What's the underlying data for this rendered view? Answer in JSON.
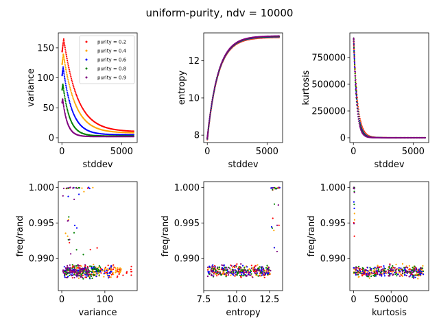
{
  "figure": {
    "title": "uniform-purity, ndv = 10000"
  },
  "legend": {
    "entries": [
      {
        "label": "purity = 0.2",
        "color": "#ff0000"
      },
      {
        "label": "purity = 0.4",
        "color": "#ffa500"
      },
      {
        "label": "purity = 0.6",
        "color": "#0000ff"
      },
      {
        "label": "purity = 0.8",
        "color": "#008000"
      },
      {
        "label": "purity = 0.9",
        "color": "#800080"
      }
    ]
  },
  "chart_data": [
    {
      "type": "scatter",
      "id": "p1",
      "xlabel": "stddev",
      "ylabel": "variance",
      "xlim": [
        -300,
        6300
      ],
      "ylim": [
        -8,
        175
      ],
      "xticks": [
        {
          "v": 0,
          "label": "0"
        },
        {
          "v": 5000,
          "label": "5000"
        }
      ],
      "yticks": [
        {
          "v": 0,
          "label": "0"
        },
        {
          "v": 50,
          "label": "50"
        },
        {
          "v": 100,
          "label": "100"
        },
        {
          "v": 150,
          "label": "150"
        }
      ],
      "legend": "top-right",
      "series": [
        {
          "name": "purity = 0.2",
          "color": "#ff0000",
          "kind": "decay",
          "peak_x": 150,
          "peak": 165,
          "floor": 10,
          "tau": 1150,
          "x_start": 20,
          "x_end": 6000,
          "n": 120
        },
        {
          "name": "purity = 0.4",
          "color": "#ffa500",
          "kind": "decay",
          "peak_x": 120,
          "peak": 140,
          "floor": 8,
          "tau": 1000,
          "x_start": 20,
          "x_end": 6000,
          "n": 120
        },
        {
          "name": "purity = 0.6",
          "color": "#0000ff",
          "kind": "decay",
          "peak_x": 100,
          "peak": 118,
          "floor": 5,
          "tau": 750,
          "x_start": 20,
          "x_end": 6000,
          "n": 120
        },
        {
          "name": "purity = 0.8",
          "color": "#008000",
          "kind": "decay",
          "peak_x": 80,
          "peak": 90,
          "floor": 3,
          "tau": 550,
          "x_start": 20,
          "x_end": 6000,
          "n": 120
        },
        {
          "name": "purity = 0.9",
          "color": "#800080",
          "kind": "decay",
          "peak_x": 60,
          "peak": 65,
          "floor": 2,
          "tau": 400,
          "x_start": 20,
          "x_end": 6000,
          "n": 120
        }
      ]
    },
    {
      "type": "scatter",
      "id": "p2",
      "xlabel": "stddev",
      "ylabel": "entropy",
      "xlim": [
        -300,
        6300
      ],
      "ylim": [
        7.6,
        13.5
      ],
      "xticks": [
        {
          "v": 0,
          "label": "0"
        },
        {
          "v": 5000,
          "label": "5000"
        }
      ],
      "yticks": [
        {
          "v": 8,
          "label": "8"
        },
        {
          "v": 10,
          "label": "10"
        },
        {
          "v": 12,
          "label": "12"
        }
      ],
      "series": [
        {
          "name": "purity = 0.2",
          "color": "#ff0000",
          "kind": "rise",
          "y0": 7.8,
          "y1": 13.3,
          "tau": 900,
          "x_start": 0,
          "x_end": 6000,
          "n": 120
        },
        {
          "name": "purity = 0.4",
          "color": "#ffa500",
          "kind": "rise",
          "y0": 7.8,
          "y1": 13.3,
          "tau": 900,
          "x_start": 0,
          "x_end": 6000,
          "n": 120
        },
        {
          "name": "purity = 0.6",
          "color": "#0000ff",
          "kind": "rise",
          "y0": 7.8,
          "y1": 13.3,
          "tau": 900,
          "x_start": 0,
          "x_end": 6000,
          "n": 120
        },
        {
          "name": "purity = 0.8",
          "color": "#008000",
          "kind": "rise",
          "y0": 7.8,
          "y1": 13.3,
          "tau": 900,
          "x_start": 0,
          "x_end": 6000,
          "n": 120
        },
        {
          "name": "purity = 0.9",
          "color": "#800080",
          "kind": "rise",
          "y0": 7.8,
          "y1": 13.3,
          "tau": 900,
          "x_start": 0,
          "x_end": 6000,
          "n": 120
        }
      ]
    },
    {
      "type": "scatter",
      "id": "p3",
      "xlabel": "stddev",
      "ylabel": "kurtosis",
      "xlim": [
        -300,
        6300
      ],
      "ylim": [
        -45000,
        980000
      ],
      "xticks": [
        {
          "v": 0,
          "label": "0"
        },
        {
          "v": 5000,
          "label": "5000"
        }
      ],
      "yticks": [
        {
          "v": 0,
          "label": "0"
        },
        {
          "v": 250000,
          "label": "250000"
        },
        {
          "v": 500000,
          "label": "500000"
        },
        {
          "v": 750000,
          "label": "750000"
        }
      ],
      "series": [
        {
          "name": "purity = 0.2",
          "color": "#ff0000",
          "kind": "decay",
          "peak_x": 20,
          "peak": 930000,
          "floor": 0,
          "tau": 320,
          "x_start": 20,
          "x_end": 6000,
          "n": 120
        },
        {
          "name": "purity = 0.4",
          "color": "#ffa500",
          "kind": "decay",
          "peak_x": 20,
          "peak": 930000,
          "floor": 0,
          "tau": 300,
          "x_start": 20,
          "x_end": 6000,
          "n": 120
        },
        {
          "name": "purity = 0.6",
          "color": "#0000ff",
          "kind": "decay",
          "peak_x": 20,
          "peak": 930000,
          "floor": 0,
          "tau": 280,
          "x_start": 20,
          "x_end": 6000,
          "n": 120
        },
        {
          "name": "purity = 0.8",
          "color": "#008000",
          "kind": "decay",
          "peak_x": 20,
          "peak": 930000,
          "floor": 0,
          "tau": 260,
          "x_start": 20,
          "x_end": 6000,
          "n": 120
        },
        {
          "name": "purity = 0.9",
          "color": "#800080",
          "kind": "decay",
          "peak_x": 20,
          "peak": 930000,
          "floor": 0,
          "tau": 240,
          "x_start": 20,
          "x_end": 6000,
          "n": 120
        }
      ]
    },
    {
      "type": "scatter",
      "id": "p4",
      "xlabel": "variance",
      "ylabel": "freq/rand",
      "xlim": [
        -8,
        175
      ],
      "ylim": [
        0.9855,
        1.0008
      ],
      "xticks": [
        {
          "v": 0,
          "label": "0"
        },
        {
          "v": 100,
          "label": "100"
        }
      ],
      "yticks": [
        {
          "v": 0.99,
          "label": "0.990"
        },
        {
          "v": 0.995,
          "label": "0.995"
        },
        {
          "v": 1.0,
          "label": "1.000"
        }
      ],
      "series": [
        {
          "name": "purity = 0.2",
          "color": "#ff0000",
          "kind": "cloud",
          "x_range": [
            10,
            165
          ],
          "y_center": 0.9882,
          "y_spread": 0.0012,
          "n": 90,
          "top_n": 6
        },
        {
          "name": "purity = 0.4",
          "color": "#ffa500",
          "kind": "cloud",
          "x_range": [
            8,
            140
          ],
          "y_center": 0.9882,
          "y_spread": 0.0012,
          "n": 90,
          "top_n": 8
        },
        {
          "name": "purity = 0.6",
          "color": "#0000ff",
          "kind": "cloud",
          "x_range": [
            5,
            118
          ],
          "y_center": 0.9882,
          "y_spread": 0.0012,
          "n": 90,
          "top_n": 8
        },
        {
          "name": "purity = 0.8",
          "color": "#008000",
          "kind": "cloud",
          "x_range": [
            3,
            90
          ],
          "y_center": 0.9882,
          "y_spread": 0.0012,
          "n": 90,
          "top_n": 10
        },
        {
          "name": "purity = 0.9",
          "color": "#800080",
          "kind": "cloud",
          "x_range": [
            2,
            65
          ],
          "y_center": 0.9882,
          "y_spread": 0.0012,
          "n": 90,
          "top_n": 12
        }
      ]
    },
    {
      "type": "scatter",
      "id": "p5",
      "xlabel": "entropy",
      "ylabel": "freq/rand",
      "xlim": [
        7.5,
        13.5
      ],
      "ylim": [
        0.9855,
        1.0008
      ],
      "xticks": [
        {
          "v": 7.5,
          "label": "7.5"
        },
        {
          "v": 10.0,
          "label": "10.0"
        },
        {
          "v": 12.5,
          "label": "12.5"
        }
      ],
      "yticks": [
        {
          "v": 0.99,
          "label": "0.990"
        },
        {
          "v": 0.995,
          "label": "0.995"
        },
        {
          "v": 1.0,
          "label": "1.000"
        }
      ],
      "series": [
        {
          "name": "purity = 0.2",
          "color": "#ff0000",
          "kind": "cloud",
          "x_range": [
            7.8,
            12.6
          ],
          "y_center": 0.9882,
          "y_spread": 0.0012,
          "n": 80,
          "top_n": 6,
          "top_x": [
            12.6,
            13.3
          ]
        },
        {
          "name": "purity = 0.4",
          "color": "#ffa500",
          "kind": "cloud",
          "x_range": [
            7.8,
            12.6
          ],
          "y_center": 0.9882,
          "y_spread": 0.0012,
          "n": 80,
          "top_n": 6,
          "top_x": [
            12.6,
            13.3
          ]
        },
        {
          "name": "purity = 0.6",
          "color": "#0000ff",
          "kind": "cloud",
          "x_range": [
            7.8,
            12.6
          ],
          "y_center": 0.9882,
          "y_spread": 0.0012,
          "n": 80,
          "top_n": 6,
          "top_x": [
            12.6,
            13.3
          ]
        },
        {
          "name": "purity = 0.8",
          "color": "#008000",
          "kind": "cloud",
          "x_range": [
            7.8,
            12.6
          ],
          "y_center": 0.9882,
          "y_spread": 0.0012,
          "n": 80,
          "top_n": 6,
          "top_x": [
            12.6,
            13.3
          ]
        },
        {
          "name": "purity = 0.9",
          "color": "#800080",
          "kind": "cloud",
          "x_range": [
            7.8,
            12.6
          ],
          "y_center": 0.9882,
          "y_spread": 0.0012,
          "n": 80,
          "top_n": 6,
          "top_x": [
            12.6,
            13.3
          ]
        }
      ]
    },
    {
      "type": "scatter",
      "id": "p6",
      "xlabel": "kurtosis",
      "ylabel": "freq/rand",
      "xlim": [
        -50000,
        1000000
      ],
      "ylim": [
        0.9855,
        1.0008
      ],
      "xticks": [
        {
          "v": 0,
          "label": "0"
        },
        {
          "v": 500000,
          "label": "500000"
        }
      ],
      "yticks": [
        {
          "v": 0.99,
          "label": "0.990"
        },
        {
          "v": 0.995,
          "label": "0.995"
        },
        {
          "v": 1.0,
          "label": "1.000"
        }
      ],
      "series": [
        {
          "name": "purity = 0.2",
          "color": "#ff0000",
          "kind": "cloud",
          "x_range": [
            0,
            930000
          ],
          "y_center": 0.9882,
          "y_spread": 0.0012,
          "n": 80,
          "top_n": 5,
          "top_x": [
            0,
            15000
          ]
        },
        {
          "name": "purity = 0.4",
          "color": "#ffa500",
          "kind": "cloud",
          "x_range": [
            0,
            930000
          ],
          "y_center": 0.9882,
          "y_spread": 0.0012,
          "n": 80,
          "top_n": 5,
          "top_x": [
            0,
            15000
          ]
        },
        {
          "name": "purity = 0.6",
          "color": "#0000ff",
          "kind": "cloud",
          "x_range": [
            0,
            930000
          ],
          "y_center": 0.9882,
          "y_spread": 0.0012,
          "n": 80,
          "top_n": 5,
          "top_x": [
            0,
            15000
          ]
        },
        {
          "name": "purity = 0.8",
          "color": "#008000",
          "kind": "cloud",
          "x_range": [
            0,
            930000
          ],
          "y_center": 0.9882,
          "y_spread": 0.0012,
          "n": 80,
          "top_n": 5,
          "top_x": [
            0,
            15000
          ]
        },
        {
          "name": "purity = 0.9",
          "color": "#800080",
          "kind": "cloud",
          "x_range": [
            0,
            930000
          ],
          "y_center": 0.9882,
          "y_spread": 0.0012,
          "n": 80,
          "top_n": 5,
          "top_x": [
            0,
            15000
          ]
        }
      ]
    }
  ]
}
